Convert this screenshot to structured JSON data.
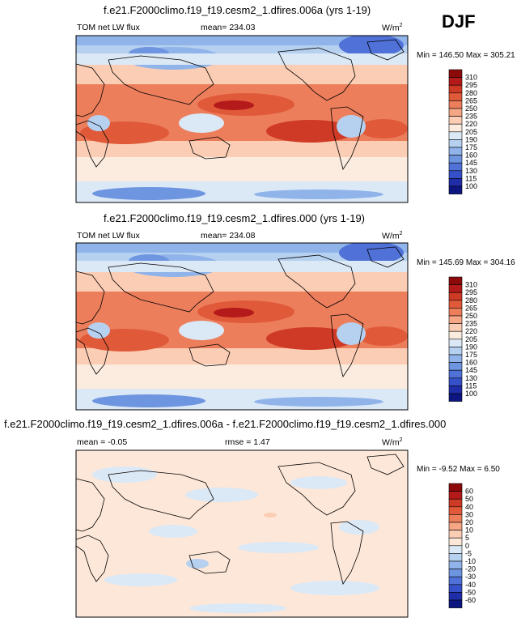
{
  "season": "DJF",
  "panels": [
    {
      "title": "f.e21.F2000climo.f19_f19.cesm2_1.dfires.006a (yrs 1-19)",
      "left_label": "TOM net LW flux",
      "center_label": "mean= 234.03",
      "units": "W/m",
      "units_sup": "2",
      "minmax": "Min = 146.50 Max = 305.21",
      "levels": [
        "310",
        "295",
        "280",
        "265",
        "250",
        "235",
        "220",
        "205",
        "190",
        "175",
        "160",
        "145",
        "130",
        "115",
        "100"
      ]
    },
    {
      "title": "f.e21.F2000climo.f19_f19.cesm2_1.dfires.000 (yrs 1-19)",
      "left_label": "TOM net LW flux",
      "center_label": "mean= 234.08",
      "units": "W/m",
      "units_sup": "2",
      "minmax": "Min = 145.69 Max = 304.16",
      "levels": [
        "310",
        "295",
        "280",
        "265",
        "250",
        "235",
        "220",
        "205",
        "190",
        "175",
        "160",
        "145",
        "130",
        "115",
        "100"
      ]
    },
    {
      "title": "f.e21.F2000climo.f19_f19.cesm2_1.dfires.006a - f.e21.F2000climo.f19_f19.cesm2_1.dfires.000",
      "left_label": "mean =  -0.05",
      "center_label": "rmse =   1.47",
      "units": "W/m",
      "units_sup": "2",
      "minmax": "Min =  -9.52 Max =   6.50",
      "levels": [
        "60",
        "50",
        "40",
        "30",
        "20",
        "10",
        "5",
        "0",
        "-5",
        "-10",
        "-20",
        "-30",
        "-40",
        "-50",
        "-60"
      ]
    }
  ],
  "chart_data": [
    {
      "type": "heatmap",
      "title": "f.e21.F2000climo.f19_f19.cesm2_1.dfires.006a (yrs 1-19)",
      "variable": "TOM net LW flux",
      "units": "W/m2",
      "mean": 234.03,
      "min": 146.5,
      "max": 305.21,
      "contour_levels": [
        100,
        115,
        130,
        145,
        160,
        175,
        190,
        205,
        220,
        235,
        250,
        265,
        280,
        295,
        310
      ]
    },
    {
      "type": "heatmap",
      "title": "f.e21.F2000climo.f19_f19.cesm2_1.dfires.000 (yrs 1-19)",
      "variable": "TOM net LW flux",
      "units": "W/m2",
      "mean": 234.08,
      "min": 145.69,
      "max": 304.16,
      "contour_levels": [
        100,
        115,
        130,
        145,
        160,
        175,
        190,
        205,
        220,
        235,
        250,
        265,
        280,
        295,
        310
      ]
    },
    {
      "type": "heatmap",
      "title": "f.e21.F2000climo.f19_f19.cesm2_1.dfires.006a - f.e21.F2000climo.f19_f19.cesm2_1.dfires.000",
      "units": "W/m2",
      "mean": -0.05,
      "rmse": 1.47,
      "min": -9.52,
      "max": 6.5,
      "contour_levels": [
        -60,
        -50,
        -40,
        -30,
        -20,
        -10,
        -5,
        0,
        5,
        10,
        20,
        30,
        40,
        50,
        60
      ]
    }
  ],
  "colors": {
    "abs_palette": [
      "#8c0a0a",
      "#b51a1a",
      "#cf3a26",
      "#e05a3a",
      "#ec7e5c",
      "#f6a685",
      "#fbcdb4",
      "#fcecdf",
      "#dbe8f6",
      "#b6d0f0",
      "#90b4ea",
      "#6e95e0",
      "#4f71d8",
      "#3550c8",
      "#1f2ea8",
      "#0d1680"
    ],
    "diff_palette": [
      "#8c0a0a",
      "#b51a1a",
      "#cf3a26",
      "#e05a3a",
      "#ec7e5c",
      "#f6a685",
      "#fbcdb4",
      "#fde7d8",
      "#dbe8f6",
      "#b6d0f0",
      "#90b4ea",
      "#6e95e0",
      "#4f71d8",
      "#3550c8",
      "#1f2ea8",
      "#0d1680"
    ]
  }
}
